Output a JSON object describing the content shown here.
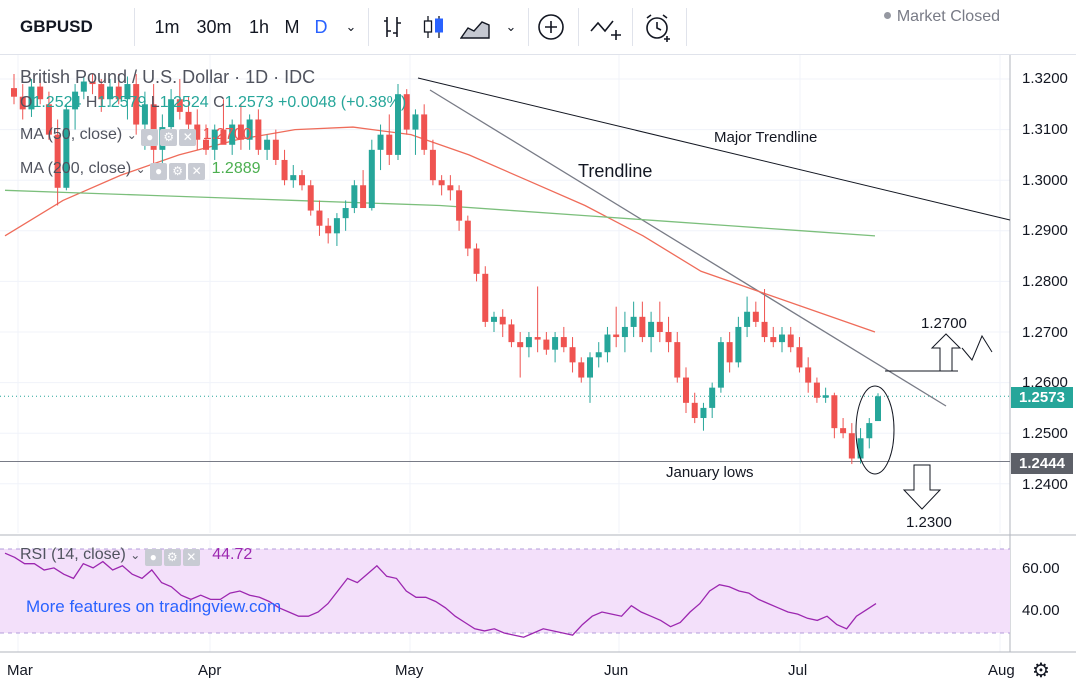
{
  "toolbar": {
    "symbol": "GBPUSD",
    "intervals": [
      "1m",
      "30m",
      "1h",
      "M",
      "D"
    ],
    "icons": [
      "chevron-down-icon",
      "bar-style-icon",
      "candles-icon",
      "area-icon",
      "add-icon",
      "indicators-icon",
      "alert-icon"
    ]
  },
  "legend": {
    "title": "British Pound / U.S. Dollar · 1D · IDC",
    "ohlc": {
      "o_label": "O",
      "o": "1.2524",
      "h_label": "H",
      "h": "1.2579",
      "l_label": "L",
      "l": "1.2524",
      "c_label": "C",
      "c": "1.2573",
      "change": "+0.0048 (+0.38%)"
    },
    "ma50": {
      "label": "MA (50, close)",
      "value": "1.2700"
    },
    "ma200": {
      "label": "MA (200, close)",
      "value": "1.2889"
    },
    "market_status": "Market Closed"
  },
  "rsi": {
    "label": "RSI (14, close)",
    "value": "44.72"
  },
  "promo": "More features on tradingview.com",
  "colors": {
    "up": "#26a69a",
    "down": "#ef5350",
    "ma50": "#ef6c5a",
    "ma200": "#7cbf7c",
    "rsi": "#9c27b0",
    "rsi_band": "#f3e0fa",
    "price_tag": "#26a69a",
    "lows_tag": "#5d6068"
  },
  "chart_data": [
    {
      "type": "candlestick",
      "title": "British Pound / U.S. Dollar · 1D · IDC",
      "ylim": [
        1.228,
        1.3275
      ],
      "y_ticks": [
        "1.3200",
        "1.3100",
        "1.3000",
        "1.2900",
        "1.2800",
        "1.2700",
        "1.2600",
        "1.2500",
        "1.2400"
      ],
      "x_ticks": [
        "Mar",
        "Apr",
        "May",
        "Jun",
        "Jul",
        "Aug"
      ],
      "last_price": "1.2573",
      "horizontal_lines": [
        {
          "label": "1.2444",
          "value": 1.2444
        }
      ],
      "annotations": [
        "Major Trendline",
        "Trendline",
        "1.2700",
        "January lows",
        "1.2300"
      ],
      "candles_approx": [
        {
          "o": 1.3182,
          "h": 1.321,
          "l": 1.315,
          "c": 1.3165
        },
        {
          "o": 1.3165,
          "h": 1.319,
          "l": 1.312,
          "c": 1.314
        },
        {
          "o": 1.314,
          "h": 1.32,
          "l": 1.3125,
          "c": 1.3185
        },
        {
          "o": 1.3185,
          "h": 1.3205,
          "l": 1.315,
          "c": 1.316
        },
        {
          "o": 1.315,
          "h": 1.3175,
          "l": 1.308,
          "c": 1.309
        },
        {
          "o": 1.309,
          "h": 1.312,
          "l": 1.295,
          "c": 1.2985
        },
        {
          "o": 1.2985,
          "h": 1.315,
          "l": 1.298,
          "c": 1.314
        },
        {
          "o": 1.314,
          "h": 1.319,
          "l": 1.31,
          "c": 1.3175
        },
        {
          "o": 1.3175,
          "h": 1.3205,
          "l": 1.316,
          "c": 1.3195
        },
        {
          "o": 1.3195,
          "h": 1.321,
          "l": 1.317,
          "c": 1.319
        },
        {
          "o": 1.319,
          "h": 1.32,
          "l": 1.3135,
          "c": 1.316
        },
        {
          "o": 1.316,
          "h": 1.32,
          "l": 1.3145,
          "c": 1.3185
        },
        {
          "o": 1.3185,
          "h": 1.321,
          "l": 1.315,
          "c": 1.316
        },
        {
          "o": 1.316,
          "h": 1.3205,
          "l": 1.312,
          "c": 1.319
        },
        {
          "o": 1.319,
          "h": 1.321,
          "l": 1.309,
          "c": 1.311
        },
        {
          "o": 1.311,
          "h": 1.3175,
          "l": 1.306,
          "c": 1.315
        },
        {
          "o": 1.315,
          "h": 1.319,
          "l": 1.303,
          "c": 1.306
        },
        {
          "o": 1.306,
          "h": 1.313,
          "l": 1.302,
          "c": 1.3105
        },
        {
          "o": 1.3105,
          "h": 1.318,
          "l": 1.308,
          "c": 1.316
        },
        {
          "o": 1.316,
          "h": 1.32,
          "l": 1.312,
          "c": 1.3135
        },
        {
          "o": 1.3135,
          "h": 1.3165,
          "l": 1.31,
          "c": 1.311
        },
        {
          "o": 1.311,
          "h": 1.314,
          "l": 1.306,
          "c": 1.308
        },
        {
          "o": 1.308,
          "h": 1.311,
          "l": 1.305,
          "c": 1.306
        },
        {
          "o": 1.306,
          "h": 1.311,
          "l": 1.304,
          "c": 1.31
        },
        {
          "o": 1.31,
          "h": 1.316,
          "l": 1.308,
          "c": 1.307
        },
        {
          "o": 1.307,
          "h": 1.312,
          "l": 1.305,
          "c": 1.311
        },
        {
          "o": 1.311,
          "h": 1.315,
          "l": 1.306,
          "c": 1.308
        },
        {
          "o": 1.308,
          "h": 1.313,
          "l": 1.306,
          "c": 1.312
        },
        {
          "o": 1.312,
          "h": 1.314,
          "l": 1.305,
          "c": 1.306
        },
        {
          "o": 1.306,
          "h": 1.309,
          "l": 1.304,
          "c": 1.308
        },
        {
          "o": 1.308,
          "h": 1.31,
          "l": 1.303,
          "c": 1.304
        },
        {
          "o": 1.304,
          "h": 1.306,
          "l": 1.299,
          "c": 1.3
        },
        {
          "o": 1.3,
          "h": 1.303,
          "l": 1.2985,
          "c": 1.301
        },
        {
          "o": 1.301,
          "h": 1.302,
          "l": 1.298,
          "c": 1.299
        },
        {
          "o": 1.299,
          "h": 1.3,
          "l": 1.293,
          "c": 1.294
        },
        {
          "o": 1.294,
          "h": 1.296,
          "l": 1.289,
          "c": 1.291
        },
        {
          "o": 1.291,
          "h": 1.2925,
          "l": 1.2875,
          "c": 1.2895
        },
        {
          "o": 1.2895,
          "h": 1.2935,
          "l": 1.287,
          "c": 1.2925
        },
        {
          "o": 1.2925,
          "h": 1.296,
          "l": 1.29,
          "c": 1.2945
        },
        {
          "o": 1.2945,
          "h": 1.3,
          "l": 1.2935,
          "c": 1.299
        },
        {
          "o": 1.299,
          "h": 1.302,
          "l": 1.295,
          "c": 1.2945
        },
        {
          "o": 1.2945,
          "h": 1.308,
          "l": 1.294,
          "c": 1.306
        },
        {
          "o": 1.306,
          "h": 1.311,
          "l": 1.302,
          "c": 1.309
        },
        {
          "o": 1.309,
          "h": 1.313,
          "l": 1.303,
          "c": 1.305
        },
        {
          "o": 1.305,
          "h": 1.319,
          "l": 1.304,
          "c": 1.317
        },
        {
          "o": 1.317,
          "h": 1.318,
          "l": 1.309,
          "c": 1.31
        },
        {
          "o": 1.31,
          "h": 1.314,
          "l": 1.305,
          "c": 1.313
        },
        {
          "o": 1.313,
          "h": 1.315,
          "l": 1.305,
          "c": 1.306
        },
        {
          "o": 1.306,
          "h": 1.308,
          "l": 1.299,
          "c": 1.3
        },
        {
          "o": 1.3,
          "h": 1.301,
          "l": 1.297,
          "c": 1.299
        },
        {
          "o": 1.299,
          "h": 1.301,
          "l": 1.296,
          "c": 1.298
        },
        {
          "o": 1.298,
          "h": 1.299,
          "l": 1.29,
          "c": 1.292
        },
        {
          "o": 1.292,
          "h": 1.293,
          "l": 1.285,
          "c": 1.2865
        },
        {
          "o": 1.2865,
          "h": 1.2875,
          "l": 1.28,
          "c": 1.2815
        },
        {
          "o": 1.2815,
          "h": 1.283,
          "l": 1.271,
          "c": 1.272
        },
        {
          "o": 1.272,
          "h": 1.274,
          "l": 1.27,
          "c": 1.273
        },
        {
          "o": 1.273,
          "h": 1.2745,
          "l": 1.269,
          "c": 1.2715
        },
        {
          "o": 1.2715,
          "h": 1.2725,
          "l": 1.267,
          "c": 1.268
        },
        {
          "o": 1.268,
          "h": 1.27,
          "l": 1.261,
          "c": 1.267
        },
        {
          "o": 1.267,
          "h": 1.27,
          "l": 1.265,
          "c": 1.269
        },
        {
          "o": 1.269,
          "h": 1.279,
          "l": 1.266,
          "c": 1.2685
        },
        {
          "o": 1.2685,
          "h": 1.27,
          "l": 1.2655,
          "c": 1.2665
        },
        {
          "o": 1.2665,
          "h": 1.27,
          "l": 1.264,
          "c": 1.269
        },
        {
          "o": 1.269,
          "h": 1.271,
          "l": 1.266,
          "c": 1.267
        },
        {
          "o": 1.267,
          "h": 1.269,
          "l": 1.262,
          "c": 1.264
        },
        {
          "o": 1.264,
          "h": 1.265,
          "l": 1.26,
          "c": 1.261
        },
        {
          "o": 1.261,
          "h": 1.266,
          "l": 1.256,
          "c": 1.265
        },
        {
          "o": 1.265,
          "h": 1.268,
          "l": 1.263,
          "c": 1.266
        },
        {
          "o": 1.266,
          "h": 1.271,
          "l": 1.264,
          "c": 1.2695
        },
        {
          "o": 1.2695,
          "h": 1.275,
          "l": 1.267,
          "c": 1.269
        },
        {
          "o": 1.269,
          "h": 1.274,
          "l": 1.266,
          "c": 1.271
        },
        {
          "o": 1.271,
          "h": 1.276,
          "l": 1.269,
          "c": 1.273
        },
        {
          "o": 1.273,
          "h": 1.276,
          "l": 1.268,
          "c": 1.269
        },
        {
          "o": 1.269,
          "h": 1.274,
          "l": 1.266,
          "c": 1.272
        },
        {
          "o": 1.272,
          "h": 1.276,
          "l": 1.268,
          "c": 1.27
        },
        {
          "o": 1.27,
          "h": 1.273,
          "l": 1.266,
          "c": 1.268
        },
        {
          "o": 1.268,
          "h": 1.27,
          "l": 1.26,
          "c": 1.261
        },
        {
          "o": 1.261,
          "h": 1.263,
          "l": 1.254,
          "c": 1.256
        },
        {
          "o": 1.256,
          "h": 1.258,
          "l": 1.252,
          "c": 1.253
        },
        {
          "o": 1.253,
          "h": 1.256,
          "l": 1.2505,
          "c": 1.255
        },
        {
          "o": 1.255,
          "h": 1.26,
          "l": 1.253,
          "c": 1.259
        },
        {
          "o": 1.259,
          "h": 1.269,
          "l": 1.258,
          "c": 1.268
        },
        {
          "o": 1.268,
          "h": 1.27,
          "l": 1.262,
          "c": 1.264
        },
        {
          "o": 1.264,
          "h": 1.273,
          "l": 1.263,
          "c": 1.271
        },
        {
          "o": 1.271,
          "h": 1.277,
          "l": 1.269,
          "c": 1.274
        },
        {
          "o": 1.274,
          "h": 1.276,
          "l": 1.271,
          "c": 1.272
        },
        {
          "o": 1.272,
          "h": 1.2785,
          "l": 1.268,
          "c": 1.269
        },
        {
          "o": 1.269,
          "h": 1.271,
          "l": 1.267,
          "c": 1.268
        },
        {
          "o": 1.268,
          "h": 1.271,
          "l": 1.266,
          "c": 1.2695
        },
        {
          "o": 1.2695,
          "h": 1.271,
          "l": 1.266,
          "c": 1.267
        },
        {
          "o": 1.267,
          "h": 1.269,
          "l": 1.262,
          "c": 1.263
        },
        {
          "o": 1.263,
          "h": 1.265,
          "l": 1.258,
          "c": 1.26
        },
        {
          "o": 1.26,
          "h": 1.261,
          "l": 1.256,
          "c": 1.257
        },
        {
          "o": 1.257,
          "h": 1.259,
          "l": 1.256,
          "c": 1.2575
        },
        {
          "o": 1.2575,
          "h": 1.258,
          "l": 1.249,
          "c": 1.251
        },
        {
          "o": 1.251,
          "h": 1.253,
          "l": 1.249,
          "c": 1.25
        },
        {
          "o": 1.25,
          "h": 1.252,
          "l": 1.2439,
          "c": 1.245
        },
        {
          "o": 1.245,
          "h": 1.251,
          "l": 1.244,
          "c": 1.249
        },
        {
          "o": 1.249,
          "h": 1.253,
          "l": 1.247,
          "c": 1.252
        },
        {
          "o": 1.2524,
          "h": 1.2579,
          "l": 1.2524,
          "c": 1.2573
        }
      ],
      "ma50_approx": [
        1.289,
        1.296,
        1.301,
        1.305,
        1.308,
        1.31,
        1.3105,
        1.309,
        1.305,
        1.3,
        1.295,
        1.289,
        1.282,
        1.278,
        1.274,
        1.27
      ],
      "ma200_approx": [
        1.298,
        1.2975,
        1.297,
        1.2965,
        1.296,
        1.2955,
        1.295,
        1.294,
        1.293,
        1.292,
        1.291,
        1.29,
        1.289
      ]
    },
    {
      "type": "line",
      "title": "RSI (14, close)",
      "ylim": [
        25,
        80
      ],
      "y_ticks": [
        "60.00",
        "40.00"
      ],
      "band": [
        30,
        70
      ],
      "last_value": "44.72",
      "values_approx": [
        68,
        66,
        63,
        63,
        60,
        61,
        58,
        56,
        63,
        61,
        64,
        60,
        62,
        58,
        56,
        60,
        54,
        52,
        48,
        46,
        48,
        46,
        46,
        49,
        50,
        48,
        47,
        45,
        42,
        40,
        38,
        38,
        40,
        44,
        50,
        56,
        54,
        58,
        62,
        57,
        56,
        50,
        47,
        47,
        45,
        42,
        38,
        35,
        32,
        31,
        32,
        30,
        29,
        28,
        30,
        32,
        31,
        30,
        29,
        34,
        38,
        40,
        39,
        38,
        43,
        40,
        38,
        36,
        33,
        35,
        40,
        44,
        50,
        53,
        52,
        50,
        49,
        46,
        44,
        42,
        40,
        39,
        37,
        36,
        38,
        34,
        32,
        38,
        41,
        44
      ]
    }
  ]
}
